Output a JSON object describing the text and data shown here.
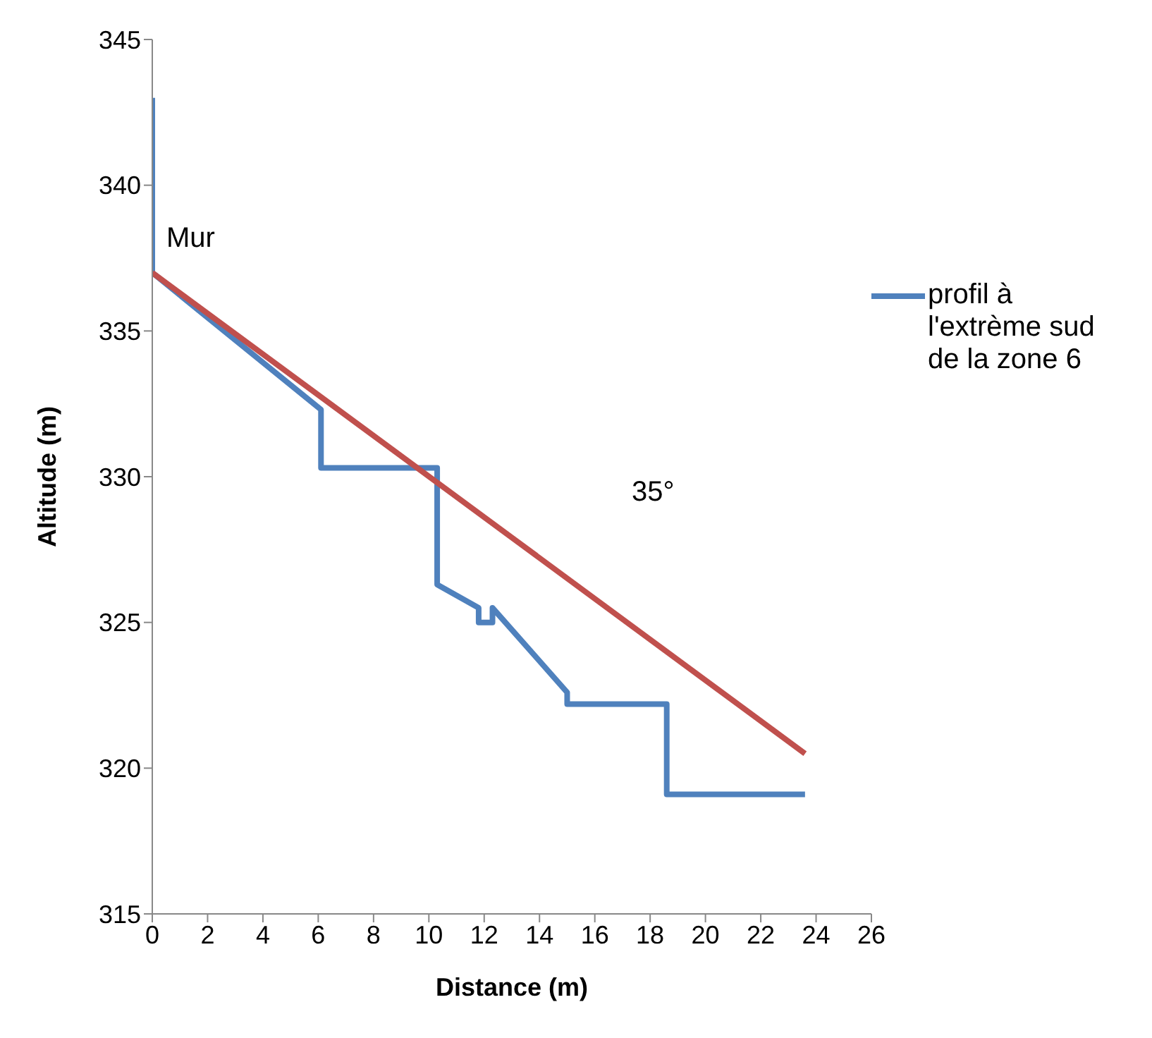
{
  "chart_data": {
    "type": "line",
    "xlabel": "Distance (m)",
    "ylabel": "Altitude (m)",
    "xlim": [
      0,
      26
    ],
    "xticks": [
      0,
      2,
      4,
      6,
      8,
      10,
      12,
      14,
      16,
      18,
      20,
      22,
      24,
      26
    ],
    "ylim": [
      315,
      345
    ],
    "yticks": [
      315,
      320,
      325,
      330,
      335,
      340,
      345
    ],
    "grid": false,
    "legend": "right",
    "marker": "none",
    "line_style": "solid",
    "series": [
      {
        "name": "profil à l'extrème sud de la zone 6",
        "color": "#4f81bd",
        "x": [
          0,
          0,
          6.1,
          6.1,
          10.3,
          10.3,
          11.8,
          11.8,
          12.3,
          12.3,
          15.0,
          15.0,
          18.6,
          18.6,
          23.6
        ],
        "values": [
          343,
          337,
          332.3,
          330.3,
          330.3,
          326.3,
          325.5,
          325.0,
          325.0,
          325.5,
          322.6,
          322.2,
          322.2,
          319.1,
          319.1
        ]
      },
      {
        "color": "#c0504d",
        "x": [
          0,
          23.6
        ],
        "values": [
          337,
          320.5
        ]
      }
    ],
    "annotations": [
      "Mur",
      "35°"
    ]
  }
}
